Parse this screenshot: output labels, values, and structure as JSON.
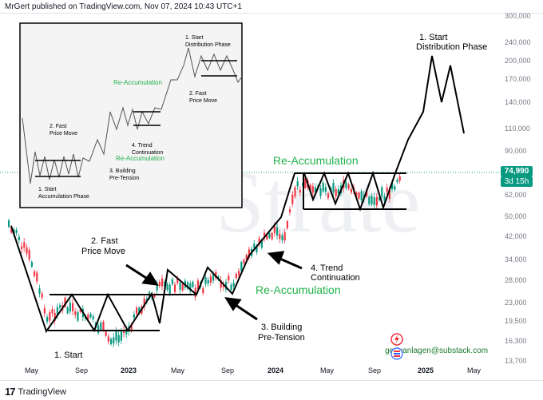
{
  "header": {
    "publisher_line": "MrGert published on TradingView.com, Nov 07, 2024 10:43 UTC+1"
  },
  "footer": {
    "logo_text": "TradingView",
    "logo_mark": "17"
  },
  "price_axis": {
    "labels": [
      "300,000",
      "240,000",
      "200,000",
      "170,000",
      "140,000",
      "110,000",
      "90,000",
      "62,000",
      "50,000",
      "42,000",
      "34,000",
      "28,000",
      "23,000",
      "19,500",
      "16,300",
      "13,700"
    ],
    "last_price": "74,990",
    "countdown": "3d 15h"
  },
  "time_axis": {
    "labels": [
      "May",
      "Sep",
      "2023",
      "May",
      "Sep",
      "2024",
      "May",
      "Sep",
      "2025",
      "May"
    ]
  },
  "annotations": {
    "start_accumulation": "1. Start",
    "fast_move": [
      "2. Fast",
      "Price Move"
    ],
    "building": [
      "3. Building",
      "Pre-Tension"
    ],
    "trend_cont": [
      "4. Trend",
      "Continuation"
    ],
    "reaccum_lower": "Re-Accumulation",
    "reaccum_upper": "Re-Accumulation",
    "start_distribution": [
      "1. Start",
      "Distribution Phase"
    ],
    "substack": "gertvanlagen@substack.com"
  },
  "inset": {
    "accumulation": [
      "1. Start",
      "Accumulation Phase"
    ],
    "fast_move": [
      "2. Fast",
      "Price Move"
    ],
    "building": [
      "3. Building",
      "Pre-Tension"
    ],
    "trend_cont": [
      "4. Trend",
      "Continuation"
    ],
    "reaccum_1": "Re-Accumulation",
    "reaccum_2": "Re-Accumulation",
    "fast_move_2": [
      "2. Fast",
      "Price Move"
    ],
    "distribution": [
      "1. Start",
      "Distribution Phase"
    ]
  },
  "colors": {
    "green_label": "#22b14c",
    "candle_up": "#089981",
    "candle_down": "#f23645",
    "price_tag": "#089981"
  },
  "icons": [
    "tradingview-logo-icon",
    "lightning-icon",
    "flag-icon"
  ]
}
